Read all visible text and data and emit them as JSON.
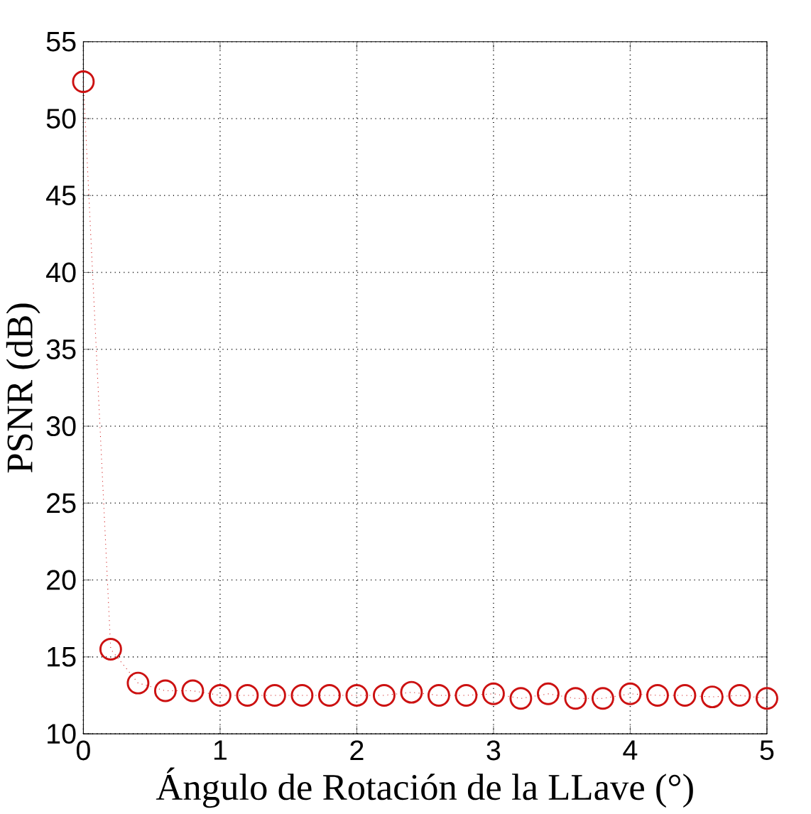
{
  "chart_data": {
    "type": "line",
    "xlabel": "Ángulo de Rotación de la LLave (°)",
    "ylabel": "PSNR (dB)",
    "x": [
      0,
      0.2,
      0.4,
      0.6,
      0.8,
      1.0,
      1.2,
      1.4,
      1.6,
      1.8,
      2.0,
      2.2,
      2.4,
      2.6,
      2.8,
      3.0,
      3.2,
      3.4,
      3.6,
      3.8,
      4.0,
      4.2,
      4.4,
      4.6,
      4.8,
      5.0
    ],
    "series": [
      {
        "color": "#cc1111",
        "values": [
          52.4,
          15.5,
          13.3,
          12.8,
          12.8,
          12.5,
          12.5,
          12.5,
          12.5,
          12.5,
          12.5,
          12.5,
          12.7,
          12.5,
          12.5,
          12.6,
          12.3,
          12.6,
          12.3,
          12.3,
          12.6,
          12.5,
          12.5,
          12.4,
          12.5,
          12.3
        ]
      }
    ],
    "xlim": [
      0,
      5
    ],
    "ylim": [
      10,
      55
    ],
    "xticks": [
      0,
      1,
      2,
      3,
      4,
      5
    ],
    "yticks": [
      10,
      15,
      20,
      25,
      30,
      35,
      40,
      45,
      50,
      55
    ],
    "grid": true,
    "marker": "circle",
    "line_style": "dotted"
  }
}
